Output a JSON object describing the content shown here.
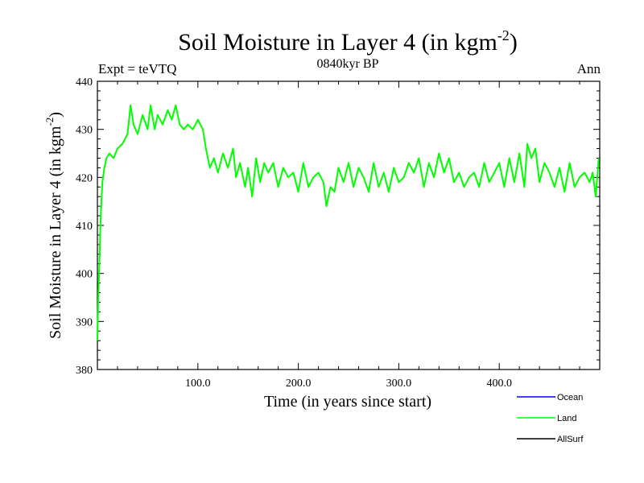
{
  "chart_data": {
    "type": "line",
    "title": "Soil Moisture in Layer 4 (in kgm",
    "title_sup": "-2",
    "title_close": ")",
    "subtitle_left": "Expt = teVTQ",
    "subtitle_center": "0840kyr BP",
    "subtitle_right": "Ann",
    "xlabel": "Time (in years since start)",
    "ylabel": "Soil Moisture in Layer 4 (in kgm",
    "ylabel_sup": "-2",
    "ylabel_close": ")",
    "xlim": [
      0,
      500
    ],
    "ylim": [
      380,
      440
    ],
    "x_ticks": [
      100,
      200,
      300,
      400
    ],
    "x_tick_labels": [
      "100.0",
      "200.0",
      "300.0",
      "400.0"
    ],
    "y_ticks": [
      380,
      390,
      400,
      410,
      420,
      430,
      440
    ],
    "y_tick_labels": [
      "380",
      "390",
      "400",
      "410",
      "420",
      "430",
      "440"
    ],
    "legend_position": "bottom-right",
    "series": [
      {
        "name": "Ocean",
        "color": "#0000ff",
        "values": []
      },
      {
        "name": "Land",
        "color": "#00ff00",
        "x": [
          0,
          1,
          2,
          3,
          4,
          5,
          7,
          9,
          12,
          16,
          20,
          25,
          30,
          33,
          36,
          40,
          45,
          50,
          53,
          57,
          60,
          65,
          70,
          74,
          78,
          82,
          86,
          90,
          95,
          100,
          105,
          108,
          112,
          116,
          120,
          125,
          130,
          135,
          138,
          142,
          147,
          150,
          154,
          158,
          162,
          166,
          170,
          175,
          180,
          185,
          190,
          195,
          200,
          205,
          210,
          215,
          220,
          225,
          228,
          232,
          236,
          240,
          245,
          250,
          255,
          260,
          265,
          270,
          275,
          280,
          285,
          290,
          295,
          300,
          305,
          310,
          315,
          320,
          325,
          330,
          335,
          340,
          345,
          350,
          355,
          360,
          365,
          370,
          375,
          380,
          385,
          390,
          395,
          400,
          405,
          410,
          415,
          420,
          425,
          428,
          432,
          436,
          440,
          445,
          450,
          455,
          460,
          465,
          470,
          475,
          480,
          485,
          490,
          493,
          496,
          499
        ],
        "y": [
          386,
          396,
          402,
          410,
          415,
          419,
          422,
          424,
          425,
          424,
          426,
          427,
          429,
          435,
          431,
          429,
          433,
          430,
          435,
          430,
          433,
          431,
          434,
          432,
          435,
          431,
          430,
          431,
          430,
          432,
          430,
          426,
          422,
          424,
          421,
          425,
          422,
          426,
          420,
          423,
          418,
          422,
          416,
          424,
          419,
          423,
          421,
          423,
          418,
          422,
          420,
          421,
          417,
          423,
          418,
          420,
          421,
          419,
          414,
          418,
          417,
          422,
          419,
          423,
          418,
          422,
          420,
          417,
          423,
          418,
          421,
          417,
          422,
          419,
          420,
          423,
          421,
          424,
          418,
          423,
          420,
          425,
          421,
          424,
          419,
          421,
          418,
          420,
          421,
          418,
          423,
          419,
          421,
          423,
          418,
          424,
          419,
          425,
          418,
          427,
          424,
          426,
          419,
          423,
          421,
          418,
          422,
          417,
          423,
          418,
          420,
          421,
          419,
          421,
          416,
          424
        ]
      },
      {
        "name": "AllSurf",
        "color": "#000000",
        "values": []
      }
    ]
  }
}
